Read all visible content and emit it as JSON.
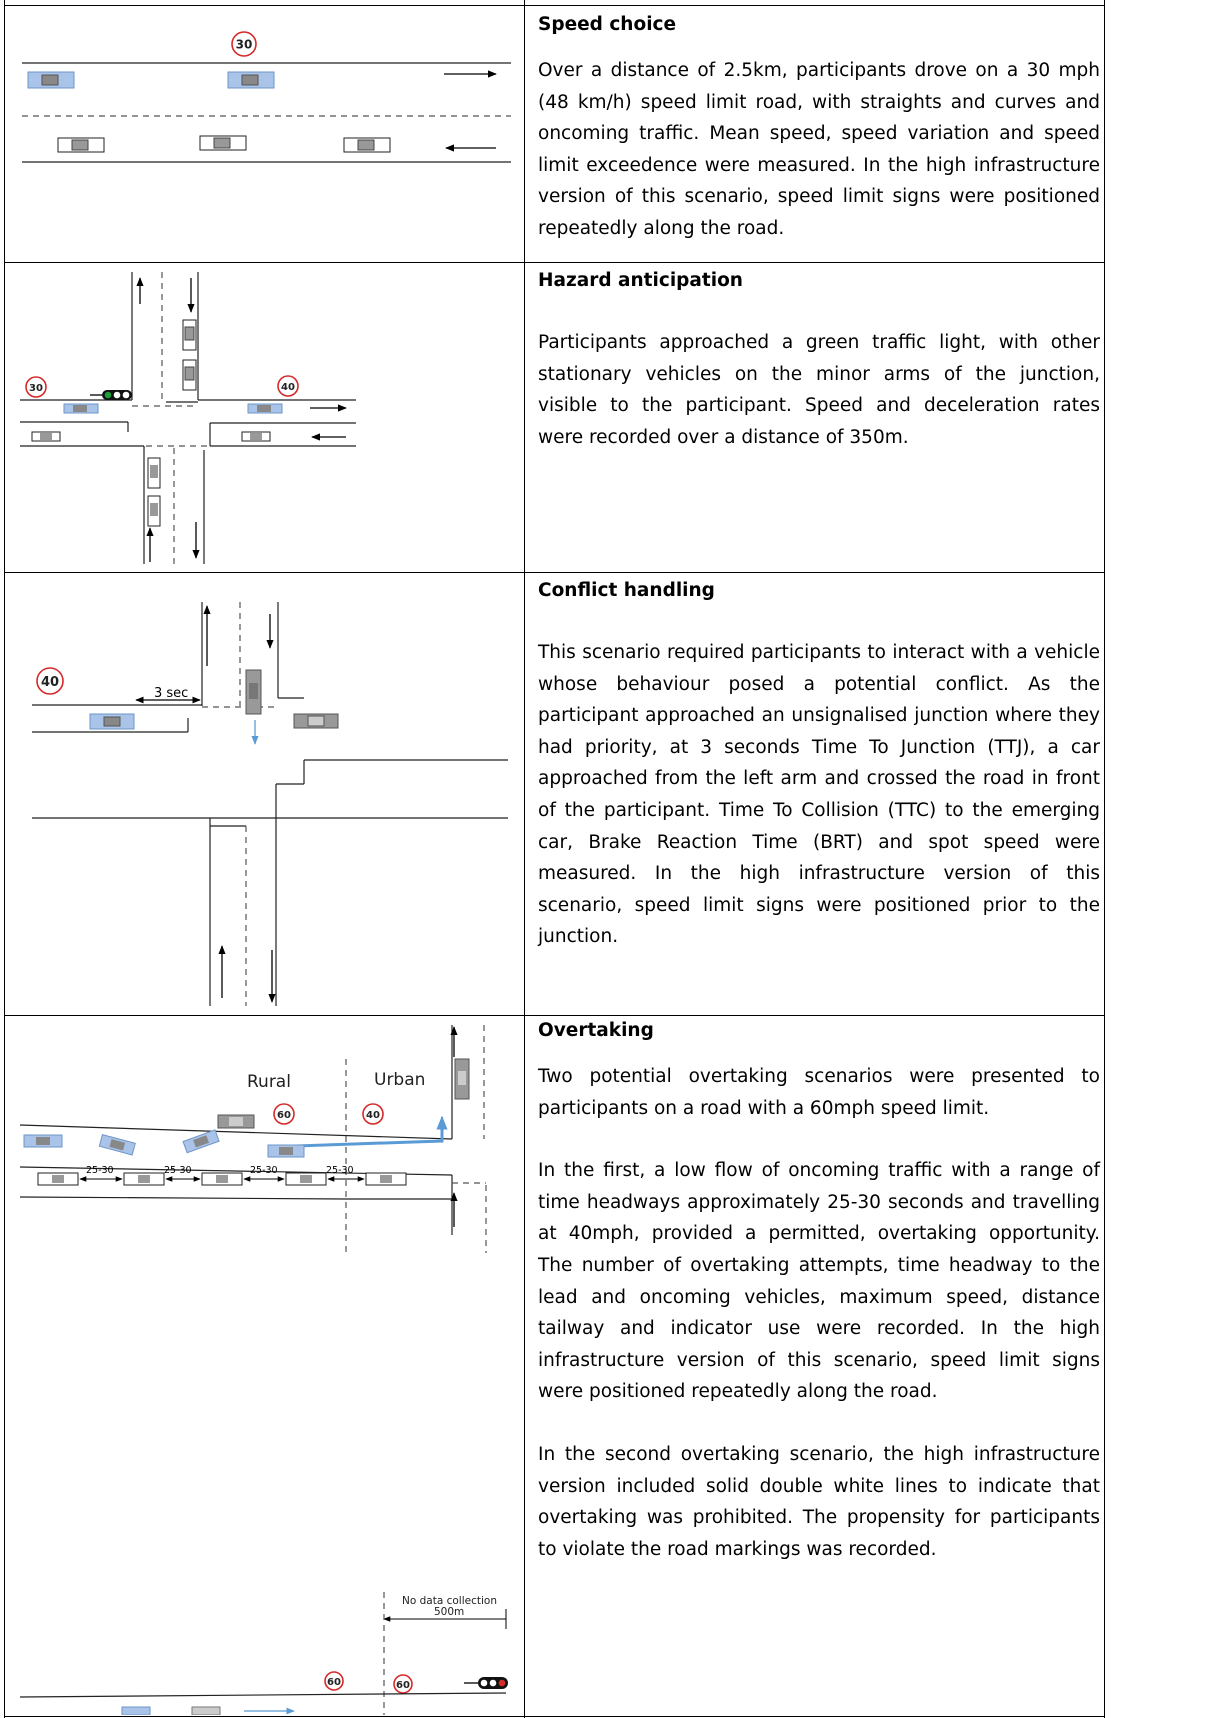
{
  "rows": [
    {
      "heading": "Speed choice",
      "paragraphs": [
        "Over a distance of 2.5km, participants drove on a 30 mph (48 km/h) speed limit road, with straights and curves and oncoming traffic. Mean speed, speed variation and speed limit exceedence were measured. In the high infrastructure version of this scenario, speed limit signs were positioned repeatedly along the road."
      ],
      "diagram": {
        "signs": [
          "30"
        ]
      }
    },
    {
      "heading": "Hazard anticipation",
      "paragraphs": [
        "Participants approached a green traffic light, with other stationary vehicles on the minor arms of the junction, visible to the participant. Speed and deceleration rates were recorded over a distance of 350m."
      ],
      "diagram": {
        "signs": [
          "30",
          "40"
        ]
      }
    },
    {
      "heading": "Conflict handling",
      "paragraphs": [
        "This scenario required participants to interact with a vehicle whose behaviour posed a potential conflict. As the participant approached an unsignalised junction where they had priority, at 3 seconds Time To Junction (TTJ), a car approached from the left arm and crossed the road in front of the participant. Time To Collision (TTC) to the emerging car, Brake Reaction Time (BRT) and spot speed were measured. In the high infrastructure version of this scenario, speed limit signs were positioned prior to the junction."
      ],
      "diagram": {
        "signs": [
          "40"
        ],
        "gap_label": "3 sec"
      }
    },
    {
      "heading": "Overtaking",
      "paragraphs": [
        "Two potential overtaking scenarios were presented to participants on a road with a 60mph speed limit.",
        "In the first, a low flow of oncoming traffic with a range of time headways approximately 25-30 seconds and travelling at 40mph, provided a permitted, overtaking opportunity. The number of overtaking attempts, time headway to the lead and oncoming vehicles, maximum speed, distance tailway and indicator use were recorded. In the high infrastructure version of this scenario, speed limit signs were positioned repeatedly along the road.",
        "In the second overtaking scenario, the high infrastructure version included solid double white lines to indicate that overtaking was prohibited. The propensity for participants to violate the road markings was recorded."
      ],
      "diagram": {
        "zone_left": "Rural",
        "zone_right": "Urban",
        "signs_top": [
          "60",
          "40"
        ],
        "headway_labels": [
          "25-30",
          "25-30",
          "25-30",
          "25-30"
        ],
        "signs_bottom": [
          "60",
          "60"
        ],
        "no_data_label": "No data collection",
        "distance_label": "500m"
      }
    }
  ]
}
